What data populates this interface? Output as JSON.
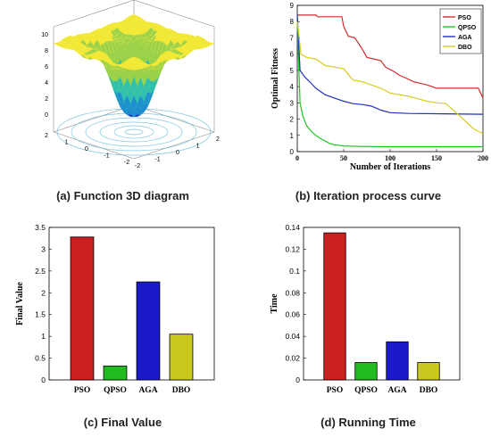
{
  "captions": {
    "a": "(a) Function 3D diagram",
    "b": "(b) Iteration process curve",
    "c": "(c) Final Value",
    "d": "(d) Running Time"
  },
  "chart_data": [
    {
      "type": "surface3d",
      "zlim": [
        0,
        10
      ],
      "zticks": [
        "0",
        "2",
        "4",
        "6",
        "8",
        "10"
      ],
      "xticks": [
        "-2",
        "-1",
        "0",
        "1",
        "2"
      ],
      "yticks": [
        "-2",
        "-1",
        "0",
        "1",
        "2"
      ],
      "colormap": [
        "#2b2fb8",
        "#1f8fd0",
        "#2fc0b0",
        "#9bd24a",
        "#f2e836"
      ],
      "contour_color": "#5fb8d8"
    },
    {
      "type": "line",
      "xlabel": "Number of Iterations",
      "ylabel": "Optimal Fitness",
      "xlim": [
        0,
        200
      ],
      "ylim": [
        0,
        9
      ],
      "xticks": [
        0,
        50,
        100,
        150,
        200
      ],
      "yticks": [
        0,
        1,
        2,
        3,
        4,
        5,
        6,
        7,
        8,
        9
      ],
      "legend_position": "top-right",
      "series": [
        {
          "name": "PSO",
          "color": "#d42a2a",
          "x": [
            0,
            20,
            22,
            48,
            50,
            55,
            62,
            70,
            75,
            90,
            95,
            105,
            110,
            118,
            125,
            140,
            150,
            195,
            200
          ],
          "y": [
            8.4,
            8.4,
            8.3,
            8.3,
            7.7,
            7.1,
            7.0,
            6.3,
            5.8,
            5.6,
            5.2,
            4.9,
            4.7,
            4.5,
            4.3,
            4.1,
            3.9,
            3.9,
            3.3
          ]
        },
        {
          "name": "QPSO",
          "color": "#22c422",
          "x": [
            0,
            3,
            6,
            10,
            15,
            20,
            25,
            30,
            35,
            40,
            50,
            70,
            100,
            150,
            200
          ],
          "y": [
            8.0,
            3.0,
            2.2,
            1.6,
            1.25,
            1.0,
            0.8,
            0.65,
            0.5,
            0.42,
            0.35,
            0.32,
            0.3,
            0.3,
            0.3
          ]
        },
        {
          "name": "AGA",
          "color": "#1f2fbf",
          "x": [
            0,
            3,
            8,
            15,
            20,
            25,
            30,
            40,
            50,
            60,
            70,
            80,
            90,
            100,
            120,
            200
          ],
          "y": [
            8.5,
            5.0,
            4.6,
            4.2,
            3.9,
            3.7,
            3.5,
            3.3,
            3.1,
            2.95,
            2.9,
            2.8,
            2.55,
            2.4,
            2.35,
            2.3
          ]
        },
        {
          "name": "DBO",
          "color": "#d8cc20",
          "x": [
            0,
            4,
            10,
            20,
            25,
            30,
            40,
            50,
            60,
            70,
            80,
            90,
            100,
            110,
            120,
            140,
            150,
            160,
            175,
            190,
            200
          ],
          "y": [
            8.0,
            6.0,
            5.8,
            5.7,
            5.5,
            5.3,
            5.2,
            5.1,
            4.4,
            4.3,
            4.1,
            3.9,
            3.6,
            3.5,
            3.4,
            3.1,
            3.0,
            2.95,
            2.2,
            1.4,
            1.1
          ]
        }
      ]
    },
    {
      "type": "bar",
      "ylabel": "Final Value",
      "categories": [
        "PSO",
        "QPSO",
        "AGA",
        "DBO"
      ],
      "values": [
        3.28,
        0.32,
        2.25,
        1.05
      ],
      "colors": [
        "#cc1f1f",
        "#22bb22",
        "#1a1ac8",
        "#c8c81e"
      ],
      "ylim": [
        0,
        3.5
      ],
      "yticks": [
        "0",
        "0.5",
        "1",
        "1.5",
        "2",
        "2.5",
        "3",
        "3.5"
      ]
    },
    {
      "type": "bar",
      "ylabel": "Time",
      "categories": [
        "PSO",
        "QPSO",
        "AGA",
        "DBO"
      ],
      "values": [
        0.135,
        0.016,
        0.035,
        0.016
      ],
      "colors": [
        "#cc1f1f",
        "#22bb22",
        "#1a1ac8",
        "#c8c81e"
      ],
      "ylim": [
        0,
        0.14
      ],
      "yticks": [
        "0",
        "0.02",
        "0.04",
        "0.06",
        "0.08",
        "0.1",
        "0.12",
        "0.14"
      ]
    }
  ]
}
